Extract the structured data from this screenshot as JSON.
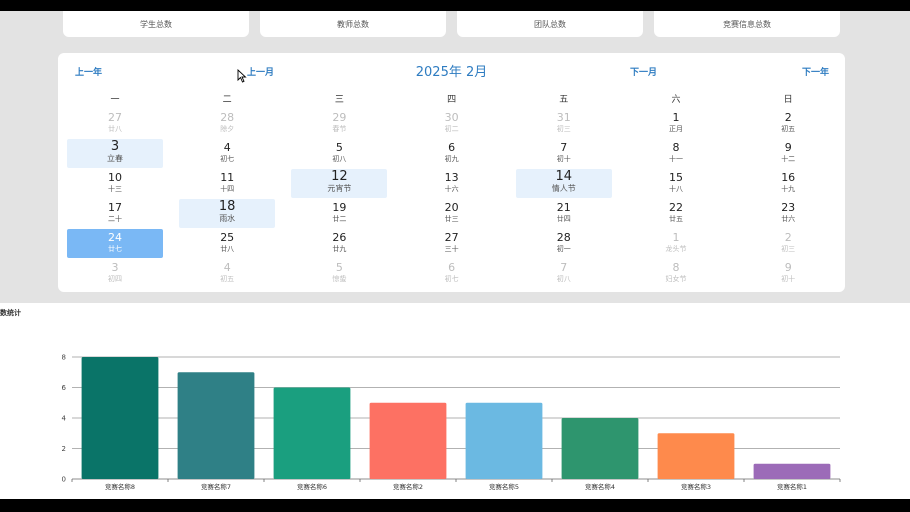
{
  "stats": [
    {
      "label": "学生总数"
    },
    {
      "label": "教师总数"
    },
    {
      "label": "团队总数"
    },
    {
      "label": "竞赛信息总数"
    }
  ],
  "calendar": {
    "title": "2025年 2月",
    "prev_year": "上一年",
    "prev_month": "上一月",
    "next_month": "下一月",
    "next_year": "下一年",
    "weekdays": [
      "一",
      "二",
      "三",
      "四",
      "五",
      "六",
      "日"
    ],
    "days": [
      {
        "num": "27",
        "lunar": "廿八",
        "state": "other"
      },
      {
        "num": "28",
        "lunar": "除夕",
        "state": "other"
      },
      {
        "num": "29",
        "lunar": "春节",
        "state": "other"
      },
      {
        "num": "30",
        "lunar": "初二",
        "state": "other"
      },
      {
        "num": "31",
        "lunar": "初三",
        "state": "other"
      },
      {
        "num": "1",
        "lunar": "正月",
        "state": "normal"
      },
      {
        "num": "2",
        "lunar": "初五",
        "state": "normal"
      },
      {
        "num": "3",
        "lunar": "立春",
        "state": "highlight"
      },
      {
        "num": "4",
        "lunar": "初七",
        "state": "normal"
      },
      {
        "num": "5",
        "lunar": "初八",
        "state": "normal"
      },
      {
        "num": "6",
        "lunar": "初九",
        "state": "normal"
      },
      {
        "num": "7",
        "lunar": "初十",
        "state": "normal"
      },
      {
        "num": "8",
        "lunar": "十一",
        "state": "normal"
      },
      {
        "num": "9",
        "lunar": "十二",
        "state": "normal"
      },
      {
        "num": "10",
        "lunar": "十三",
        "state": "normal"
      },
      {
        "num": "11",
        "lunar": "十四",
        "state": "normal"
      },
      {
        "num": "12",
        "lunar": "元宵节",
        "state": "highlight"
      },
      {
        "num": "13",
        "lunar": "十六",
        "state": "normal"
      },
      {
        "num": "14",
        "lunar": "情人节",
        "state": "highlight"
      },
      {
        "num": "15",
        "lunar": "十八",
        "state": "normal"
      },
      {
        "num": "16",
        "lunar": "十九",
        "state": "normal"
      },
      {
        "num": "17",
        "lunar": "二十",
        "state": "normal"
      },
      {
        "num": "18",
        "lunar": "雨水",
        "state": "highlight"
      },
      {
        "num": "19",
        "lunar": "廿二",
        "state": "normal"
      },
      {
        "num": "20",
        "lunar": "廿三",
        "state": "normal"
      },
      {
        "num": "21",
        "lunar": "廿四",
        "state": "normal"
      },
      {
        "num": "22",
        "lunar": "廿五",
        "state": "normal"
      },
      {
        "num": "23",
        "lunar": "廿六",
        "state": "normal"
      },
      {
        "num": "24",
        "lunar": "廿七",
        "state": "today"
      },
      {
        "num": "25",
        "lunar": "廿八",
        "state": "normal"
      },
      {
        "num": "26",
        "lunar": "廿九",
        "state": "normal"
      },
      {
        "num": "27",
        "lunar": "三十",
        "state": "normal"
      },
      {
        "num": "28",
        "lunar": "初一",
        "state": "normal"
      },
      {
        "num": "1",
        "lunar": "龙头节",
        "state": "other"
      },
      {
        "num": "2",
        "lunar": "初三",
        "state": "other"
      },
      {
        "num": "3",
        "lunar": "初四",
        "state": "other"
      },
      {
        "num": "4",
        "lunar": "初五",
        "state": "other"
      },
      {
        "num": "5",
        "lunar": "惊蛰",
        "state": "other"
      },
      {
        "num": "6",
        "lunar": "初七",
        "state": "other"
      },
      {
        "num": "7",
        "lunar": "初八",
        "state": "other"
      },
      {
        "num": "8",
        "lunar": "妇女节",
        "state": "other"
      },
      {
        "num": "9",
        "lunar": "初十",
        "state": "other"
      }
    ]
  },
  "chart_panel": {
    "title": "数统计"
  },
  "colors": {
    "accent": "#2e7cc1",
    "highlight_bg": "#e6f1fc",
    "today_bg": "#7ab8f5"
  },
  "chart_data": {
    "type": "bar",
    "categories": [
      "竞赛名称8",
      "竞赛名称7",
      "竞赛名称6",
      "竞赛名称2",
      "竞赛名称5",
      "竞赛名称4",
      "竞赛名称3",
      "竞赛名称1"
    ],
    "values": [
      8,
      7,
      6,
      5,
      5,
      4,
      3,
      1
    ],
    "colors": [
      "#0a7468",
      "#2f8086",
      "#1a9f7f",
      "#fd7163",
      "#6bb9e2",
      "#2e956e",
      "#fe8a4c",
      "#9c6bb8"
    ],
    "ylim": [
      0,
      8
    ],
    "yticks": [
      0,
      2,
      4,
      6,
      8
    ],
    "grid": true,
    "xlabel": "",
    "ylabel": ""
  }
}
